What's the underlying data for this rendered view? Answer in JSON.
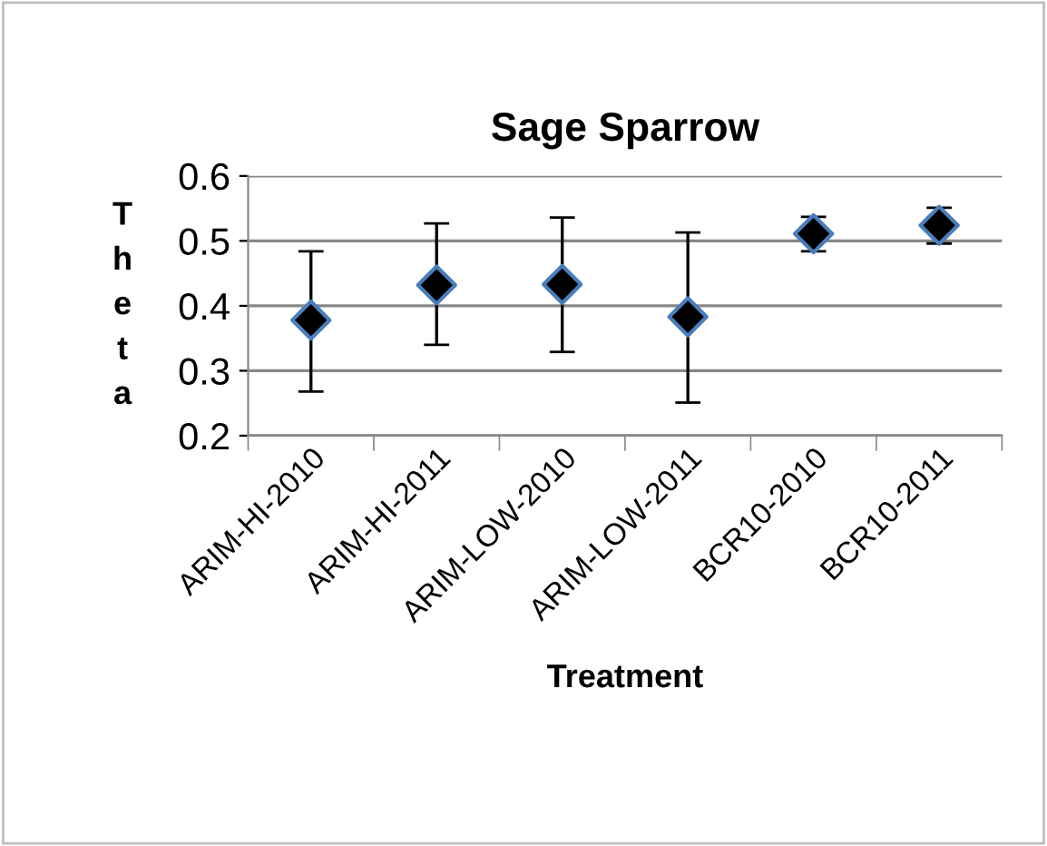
{
  "chart_data": {
    "type": "scatter",
    "title": "Sage Sparrow",
    "xlabel": "Treatment",
    "ylabel": "Theta",
    "categories": [
      "ARIM-HI-2010",
      "ARIM-HI-2011",
      "ARIM-LOW-2010",
      "ARIM-LOW-2011",
      "BCR10-2010",
      "BCR10-2011"
    ],
    "series": [
      {
        "color": "#000000",
        "values": [
          0.378,
          0.432,
          0.433,
          0.383,
          0.511,
          0.524
        ],
        "errors": [
          [
            0.268,
            0.484
          ],
          [
            0.34,
            0.527
          ],
          [
            0.329,
            0.536
          ],
          [
            0.251,
            0.513
          ],
          [
            0.484,
            0.537
          ],
          [
            0.496,
            0.551
          ]
        ]
      }
    ],
    "ylim": [
      0.2,
      0.6
    ],
    "yticks": [
      0.2,
      0.3,
      0.4,
      0.5,
      0.6
    ],
    "grid": "y",
    "legend": false,
    "marker": "diamond"
  }
}
